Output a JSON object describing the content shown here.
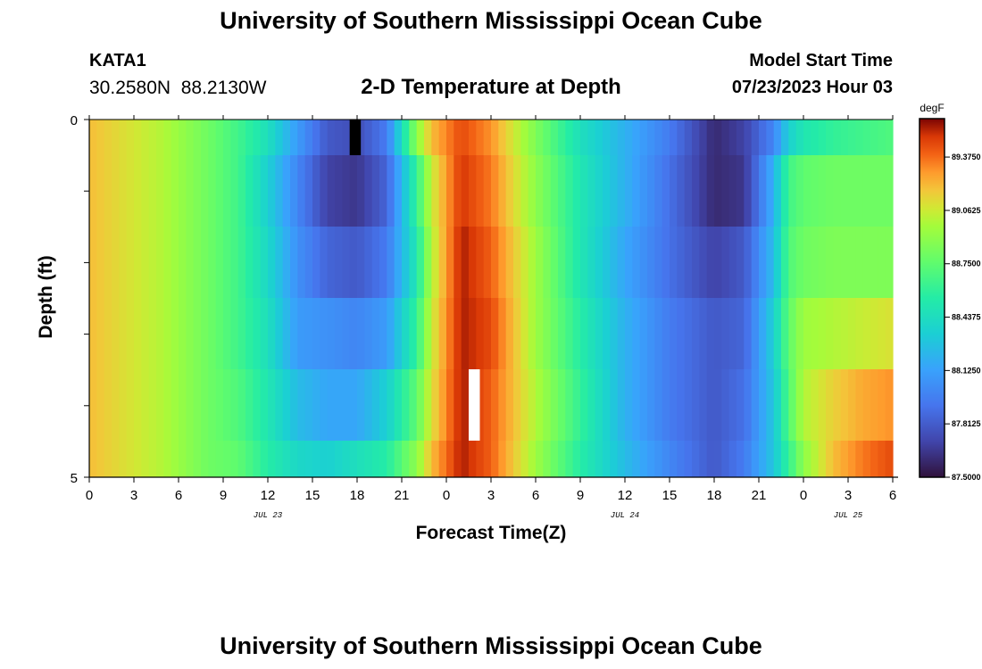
{
  "header": {
    "title": "University of Southern Mississippi Ocean Cube",
    "station_id": "KATA1",
    "coords": "30.2580N  88.2130W",
    "subtitle": "2-D Temperature at Depth",
    "model_label": "Model Start Time",
    "model_time": "07/23/2023 Hour 03"
  },
  "footer": {
    "title": "University of Southern Mississippi Ocean Cube"
  },
  "chart_data": {
    "type": "heatmap",
    "title": "2-D Temperature at Depth",
    "xlabel": "Forecast Time(Z)",
    "ylabel": "Depth (ft)",
    "units": "degF",
    "x_start_hour": 0,
    "x_end_hour": 54,
    "xlim": [
      0,
      54
    ],
    "ylim": [
      0,
      5
    ],
    "x_tick_labels": [
      "0",
      "3",
      "6",
      "9",
      "12",
      "15",
      "18",
      "21",
      "0",
      "3",
      "6",
      "9",
      "12",
      "15",
      "18",
      "21",
      "0",
      "3",
      "6"
    ],
    "y_tick_labels": [
      "0",
      "5"
    ],
    "date_labels": [
      {
        "label": "JUL 23",
        "hour": 12
      },
      {
        "label": "JUL 24",
        "hour": 36
      },
      {
        "label": "JUL 25",
        "hour": 51
      }
    ],
    "depth_rows": [
      0,
      1,
      2,
      3,
      4,
      5
    ],
    "colorbar_ticks": [
      "87.5000",
      "87.8125",
      "88.1250",
      "88.4375",
      "88.7500",
      "89.0625",
      "89.3750"
    ],
    "colorbar_range": [
      87.5,
      89.6
    ],
    "keyframes": [
      {
        "hour": 0,
        "temps": [
          89.2,
          89.2,
          89.2,
          89.2,
          89.2,
          89.2
        ]
      },
      {
        "hour": 5,
        "temps": [
          89.0,
          89.0,
          89.0,
          89.0,
          89.0,
          89.0
        ]
      },
      {
        "hour": 8,
        "temps": [
          88.8,
          88.8,
          88.8,
          88.8,
          88.8,
          88.8
        ]
      },
      {
        "hour": 10,
        "temps": [
          88.65,
          88.65,
          88.65,
          88.65,
          88.7,
          88.75
        ]
      },
      {
        "hour": 12,
        "temps": [
          88.45,
          88.35,
          88.4,
          88.45,
          88.5,
          88.55
        ]
      },
      {
        "hour": 14,
        "temps": [
          88.1,
          88.0,
          88.05,
          88.1,
          88.25,
          88.4
        ]
      },
      {
        "hour": 16,
        "temps": [
          87.8,
          87.7,
          87.85,
          88.05,
          88.15,
          88.35
        ]
      },
      {
        "hour": 18,
        "temps": [
          87.75,
          87.65,
          87.8,
          88.0,
          88.15,
          88.45
        ]
      },
      {
        "hour": 20,
        "temps": [
          87.95,
          87.85,
          87.95,
          88.1,
          88.35,
          88.55
        ]
      },
      {
        "hour": 22,
        "temps": [
          88.9,
          88.6,
          88.5,
          88.6,
          88.75,
          88.9
        ]
      },
      {
        "hour": 23,
        "temps": [
          89.2,
          89.05,
          89.0,
          89.05,
          89.1,
          89.2
        ]
      },
      {
        "hour": 25,
        "temps": [
          89.45,
          89.5,
          89.55,
          89.55,
          89.55,
          89.55
        ]
      },
      {
        "hour": 27,
        "temps": [
          89.3,
          89.35,
          89.4,
          89.45,
          89.4,
          89.4
        ]
      },
      {
        "hour": 30,
        "temps": [
          88.85,
          88.9,
          88.95,
          88.95,
          89.0,
          88.95
        ]
      },
      {
        "hour": 33,
        "temps": [
          88.45,
          88.5,
          88.5,
          88.55,
          88.6,
          88.55
        ]
      },
      {
        "hour": 36,
        "temps": [
          88.2,
          88.2,
          88.15,
          88.2,
          88.2,
          88.25
        ]
      },
      {
        "hour": 39,
        "temps": [
          87.95,
          87.9,
          87.9,
          87.95,
          87.95,
          88.0
        ]
      },
      {
        "hour": 42,
        "temps": [
          87.6,
          87.6,
          87.7,
          87.8,
          87.8,
          87.8
        ]
      },
      {
        "hour": 44,
        "temps": [
          87.7,
          87.65,
          87.8,
          87.85,
          87.9,
          87.95
        ]
      },
      {
        "hour": 46,
        "temps": [
          88.0,
          88.2,
          88.25,
          88.35,
          88.3,
          88.3
        ]
      },
      {
        "hour": 47,
        "temps": [
          88.35,
          88.65,
          88.7,
          88.75,
          88.7,
          88.6
        ]
      },
      {
        "hour": 48,
        "temps": [
          88.5,
          88.75,
          88.8,
          88.95,
          89.0,
          88.9
        ]
      },
      {
        "hour": 50,
        "temps": [
          88.6,
          88.8,
          88.85,
          89.0,
          89.15,
          89.2
        ]
      },
      {
        "hour": 52,
        "temps": [
          88.65,
          88.8,
          88.85,
          89.05,
          89.25,
          89.35
        ]
      },
      {
        "hour": 54,
        "temps": [
          88.7,
          88.8,
          88.85,
          89.1,
          89.3,
          89.45
        ]
      }
    ],
    "missing_cells": [
      {
        "hour": 17.5,
        "row": 0,
        "color": "#000000"
      },
      {
        "hour": 25.5,
        "row": 4,
        "color": "#ffffff"
      }
    ]
  }
}
